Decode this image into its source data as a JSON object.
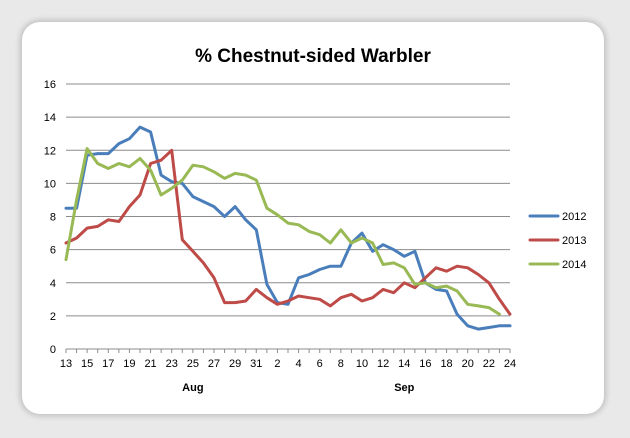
{
  "chart_data": {
    "type": "line",
    "title": "% Chestnut-sided Warbler",
    "xlabel": "",
    "ylabel": "",
    "ylim": [
      0,
      16
    ],
    "yticks": [
      0,
      2,
      4,
      6,
      8,
      10,
      12,
      14,
      16
    ],
    "x_tick_labels": [
      "13",
      "15",
      "17",
      "19",
      "21",
      "23",
      "25",
      "27",
      "29",
      "31",
      "2",
      "4",
      "6",
      "8",
      "10",
      "12",
      "14",
      "16",
      "18",
      "20",
      "22",
      "24"
    ],
    "month_labels": [
      {
        "label": "Aug",
        "at_index": 12
      },
      {
        "label": "Sep",
        "at_index": 32
      }
    ],
    "grid": true,
    "legend": "right",
    "series": [
      {
        "name": "2012",
        "color": "#4a7ebb",
        "values": [
          8.5,
          8.5,
          11.7,
          11.8,
          11.8,
          12.4,
          12.7,
          13.4,
          13.1,
          10.5,
          10.1,
          10.0,
          9.2,
          8.9,
          8.6,
          8.0,
          8.6,
          7.8,
          7.2,
          3.9,
          2.8,
          2.7,
          4.3,
          4.5,
          4.8,
          5.0,
          5.0,
          6.4,
          7.0,
          5.9,
          6.3,
          6.0,
          5.6,
          5.9,
          4.0,
          3.6,
          3.5,
          2.1,
          1.4,
          1.2,
          1.3,
          1.4,
          1.4
        ]
      },
      {
        "name": "2013",
        "color": "#be4b48",
        "values": [
          6.4,
          6.7,
          7.3,
          7.4,
          7.8,
          7.7,
          8.6,
          9.3,
          11.2,
          11.4,
          12.0,
          6.6,
          5.9,
          5.2,
          4.3,
          2.8,
          2.8,
          2.9,
          3.6,
          3.1,
          2.7,
          2.9,
          3.2,
          3.1,
          3.0,
          2.6,
          3.1,
          3.3,
          2.9,
          3.1,
          3.6,
          3.4,
          4.0,
          3.7,
          4.3,
          4.9,
          4.7,
          5.0,
          4.9,
          4.5,
          4.0,
          3.0,
          2.1
        ]
      },
      {
        "name": "2014",
        "color": "#98b954",
        "values": [
          5.4,
          9.0,
          12.1,
          11.2,
          10.9,
          11.2,
          11.0,
          11.5,
          10.8,
          9.3,
          9.7,
          10.2,
          11.1,
          11.0,
          10.7,
          10.3,
          10.6,
          10.5,
          10.2,
          8.5,
          8.1,
          7.6,
          7.5,
          7.1,
          6.9,
          6.4,
          7.2,
          6.4,
          6.7,
          6.4,
          5.1,
          5.2,
          4.9,
          3.9,
          4.0,
          3.7,
          3.8,
          3.5,
          2.7,
          2.6,
          2.5,
          2.1
        ]
      }
    ]
  }
}
